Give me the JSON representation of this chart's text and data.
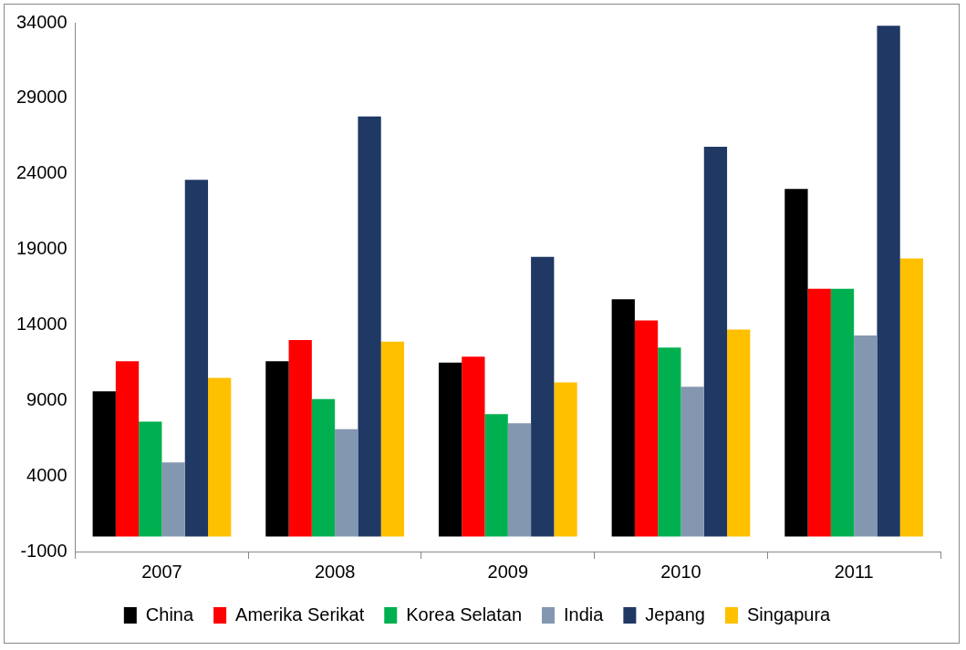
{
  "chart_data": {
    "type": "bar",
    "categories": [
      "2007",
      "2008",
      "2009",
      "2010",
      "2011"
    ],
    "series": [
      {
        "name": "China",
        "color": "#000000",
        "values": [
          9600,
          11600,
          11500,
          15700,
          23000
        ]
      },
      {
        "name": "Amerika Serikat",
        "color": "#ff0000",
        "values": [
          11600,
          13000,
          11900,
          14300,
          16400
        ]
      },
      {
        "name": "Korea Selatan",
        "color": "#00b050",
        "values": [
          7600,
          9100,
          8100,
          12500,
          16400
        ]
      },
      {
        "name": "India",
        "color": "#8497b0",
        "values": [
          4900,
          7100,
          7500,
          9900,
          13300
        ]
      },
      {
        "name": "Jepang",
        "color": "#1f3864",
        "values": [
          23600,
          27800,
          18500,
          25800,
          33800
        ]
      },
      {
        "name": "Singapura",
        "color": "#ffc000",
        "values": [
          10500,
          12900,
          10200,
          13700,
          18400
        ]
      }
    ],
    "ylim": [
      -1000,
      34000
    ],
    "yticks": [
      -1000,
      4000,
      9000,
      14000,
      19000,
      24000,
      29000,
      34000
    ],
    "grid": false,
    "legend": "bottom"
  }
}
